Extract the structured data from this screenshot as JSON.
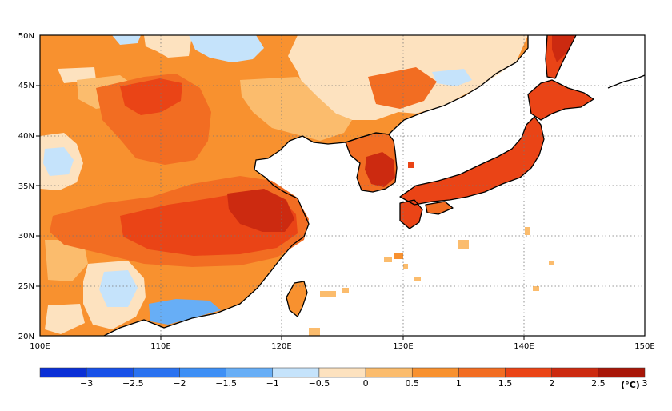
{
  "map": {
    "lon_labels": [
      "100E",
      "110E",
      "120E",
      "130E",
      "140E",
      "150E"
    ],
    "lat_labels": [
      "20N",
      "25N",
      "30N",
      "35N",
      "40N",
      "45N",
      "50N"
    ],
    "lon_range": [
      100,
      150
    ],
    "lat_range": [
      20,
      50
    ],
    "grid": "dotted gridlines at 10° longitude and 5° latitude"
  },
  "colorbar": {
    "tick_labels": [
      "−3",
      "−2.5",
      "−2",
      "−1.5",
      "−1",
      "−0.5",
      "0",
      "0.5",
      "1",
      "1.5",
      "2",
      "2.5",
      "3"
    ],
    "unit": "(°C)",
    "colors": [
      "#0a2fd6",
      "#1750e8",
      "#2a72f0",
      "#3d8ff5",
      "#67aef6",
      "#c5e3fb",
      "#fde2bf",
      "#fbbc6d",
      "#f8912f",
      "#f26d22",
      "#ea4416",
      "#cc2a10",
      "#a81608"
    ]
  },
  "colors": {
    "ocean": "#ffffff",
    "land_base": "#f8912f",
    "coastline": "#000000",
    "frame": "#000000"
  }
}
